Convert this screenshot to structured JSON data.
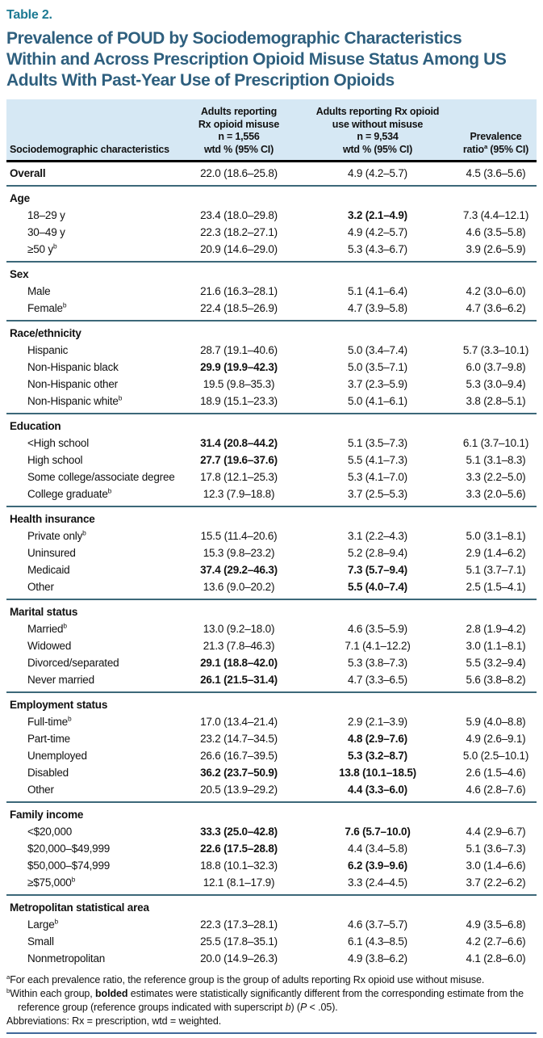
{
  "colors": {
    "accent_teal": "#1c7a93",
    "title_blue": "#2e5f7e",
    "header_bg": "#d6e8f4",
    "divider": "#3c6879",
    "bottom_rule": "#40689a"
  },
  "table_label": "Table 2.",
  "title_lines": [
    "Prevalence of POUD by Sociodemographic Characteristics",
    "Within and Across Prescription Opioid Misuse Status Among US",
    "Adults With Past-Year Use of Prescription Opioids"
  ],
  "header": {
    "col1": "Sociodemographic characteristics",
    "col2_lines": [
      [
        {
          "t": "Adults reporting"
        }
      ],
      [
        {
          "t": "Rx opioid misuse"
        }
      ],
      [
        {
          "t": "n = 1,556"
        }
      ],
      [
        {
          "t": "wtd % (95% CI)"
        }
      ]
    ],
    "col3_lines": [
      [
        {
          "t": "Adults reporting Rx opioid"
        }
      ],
      [
        {
          "t": "use without misuse"
        }
      ],
      [
        {
          "t": "n = 9,534"
        }
      ],
      [
        {
          "t": "wtd % (95% CI)"
        }
      ]
    ],
    "col4_lines": [
      [
        {
          "t": "Prevalence"
        }
      ],
      [
        {
          "t": "ratio"
        },
        {
          "t": "a",
          "style": "sup"
        },
        {
          "t": " (95% CI)"
        }
      ]
    ]
  },
  "rows": [
    {
      "type": "data",
      "flush": true,
      "label_bold": true,
      "label": "Overall",
      "cells": [
        {
          "t": "22.0 (18.6–25.8)"
        },
        {
          "t": "4.9 (4.2–5.7)"
        },
        {
          "t": "4.5 (3.6–5.6)"
        }
      ]
    },
    {
      "type": "divider"
    },
    {
      "type": "section",
      "label": "Age"
    },
    {
      "type": "data",
      "label": "18–29 y",
      "cells": [
        {
          "t": "23.4 (18.0–29.8)"
        },
        {
          "t": "3.2 (2.1–4.9)",
          "bold": true
        },
        {
          "t": "7.3 (4.4–12.1)"
        }
      ]
    },
    {
      "type": "data",
      "label": "30–49 y",
      "cells": [
        {
          "t": "22.3 (18.2–27.1)"
        },
        {
          "t": "4.9 (4.2–5.7)"
        },
        {
          "t": "4.6 (3.5–5.8)"
        }
      ]
    },
    {
      "type": "data",
      "label": "≥50 y",
      "sup": "b",
      "cells": [
        {
          "t": "20.9 (14.6–29.0)"
        },
        {
          "t": "5.3 (4.3–6.7)"
        },
        {
          "t": "3.9 (2.6–5.9)"
        }
      ]
    },
    {
      "type": "divider"
    },
    {
      "type": "section",
      "label": "Sex"
    },
    {
      "type": "data",
      "label": "Male",
      "cells": [
        {
          "t": "21.6 (16.3–28.1)"
        },
        {
          "t": "5.1 (4.1–6.4)"
        },
        {
          "t": "4.2 (3.0–6.0)"
        }
      ]
    },
    {
      "type": "data",
      "label": "Female",
      "sup": "b",
      "cells": [
        {
          "t": "22.4 (18.5–26.9)"
        },
        {
          "t": "4.7 (3.9–5.8)"
        },
        {
          "t": "4.7 (3.6–6.2)"
        }
      ]
    },
    {
      "type": "divider"
    },
    {
      "type": "section",
      "label": "Race/ethnicity"
    },
    {
      "type": "data",
      "label": "Hispanic",
      "cells": [
        {
          "t": "28.7 (19.1–40.6)"
        },
        {
          "t": "5.0 (3.4–7.4)"
        },
        {
          "t": "5.7 (3.3–10.1)"
        }
      ]
    },
    {
      "type": "data",
      "label": "Non-Hispanic black",
      "cells": [
        {
          "t": "29.9 (19.9–42.3)",
          "bold": true
        },
        {
          "t": "5.0 (3.5–7.1)"
        },
        {
          "t": "6.0 (3.7–9.8)"
        }
      ]
    },
    {
      "type": "data",
      "label": "Non-Hispanic other",
      "cells": [
        {
          "t": "19.5 (9.8–35.3)"
        },
        {
          "t": "3.7 (2.3–5.9)"
        },
        {
          "t": "5.3 (3.0–9.4)"
        }
      ]
    },
    {
      "type": "data",
      "label": "Non-Hispanic white",
      "sup": "b",
      "cells": [
        {
          "t": "18.9 (15.1–23.3)"
        },
        {
          "t": "5.0 (4.1–6.1)"
        },
        {
          "t": "3.8 (2.8–5.1)"
        }
      ]
    },
    {
      "type": "divider"
    },
    {
      "type": "section",
      "label": "Education"
    },
    {
      "type": "data",
      "label": "<High school",
      "cells": [
        {
          "t": "31.4 (20.8–44.2)",
          "bold": true
        },
        {
          "t": "5.1 (3.5–7.3)"
        },
        {
          "t": "6.1 (3.7–10.1)"
        }
      ]
    },
    {
      "type": "data",
      "label": "High school",
      "cells": [
        {
          "t": "27.7 (19.6–37.6)",
          "bold": true
        },
        {
          "t": "5.5 (4.1–7.3)"
        },
        {
          "t": "5.1 (3.1–8.3)"
        }
      ]
    },
    {
      "type": "data",
      "label": "Some college/associate degree",
      "cells": [
        {
          "t": "17.8 (12.1–25.3)"
        },
        {
          "t": "5.3 (4.1–7.0)"
        },
        {
          "t": "3.3 (2.2–5.0)"
        }
      ]
    },
    {
      "type": "data",
      "label": "College graduate",
      "sup": "b",
      "cells": [
        {
          "t": "12.3 (7.9–18.8)"
        },
        {
          "t": "3.7 (2.5–5.3)"
        },
        {
          "t": "3.3 (2.0–5.6)"
        }
      ]
    },
    {
      "type": "divider"
    },
    {
      "type": "section",
      "label": "Health insurance"
    },
    {
      "type": "data",
      "label": "Private only",
      "sup": "b",
      "cells": [
        {
          "t": "15.5 (11.4–20.6)"
        },
        {
          "t": "3.1 (2.2–4.3)"
        },
        {
          "t": "5.0 (3.1–8.1)"
        }
      ]
    },
    {
      "type": "data",
      "label": "Uninsured",
      "cells": [
        {
          "t": "15.3 (9.8–23.2)"
        },
        {
          "t": "5.2 (2.8–9.4)"
        },
        {
          "t": "2.9 (1.4–6.2)"
        }
      ]
    },
    {
      "type": "data",
      "label": "Medicaid",
      "cells": [
        {
          "t": "37.4 (29.2–46.3)",
          "bold": true
        },
        {
          "t": "7.3 (5.7–9.4)",
          "bold": true
        },
        {
          "t": "5.1 (3.7–7.1)"
        }
      ]
    },
    {
      "type": "data",
      "label": "Other",
      "cells": [
        {
          "t": "13.6 (9.0–20.2)"
        },
        {
          "t": "5.5 (4.0–7.4)",
          "bold": true
        },
        {
          "t": "2.5 (1.5–4.1)"
        }
      ]
    },
    {
      "type": "divider"
    },
    {
      "type": "section",
      "label": "Marital status"
    },
    {
      "type": "data",
      "label": "Married",
      "sup": "b",
      "cells": [
        {
          "t": "13.0 (9.2–18.0)"
        },
        {
          "t": "4.6 (3.5–5.9)"
        },
        {
          "t": "2.8 (1.9–4.2)"
        }
      ]
    },
    {
      "type": "data",
      "label": "Widowed",
      "cells": [
        {
          "t": "21.3 (7.8–46.3)"
        },
        {
          "t": "7.1 (4.1–12.2)"
        },
        {
          "t": "3.0 (1.1–8.1)"
        }
      ]
    },
    {
      "type": "data",
      "label": "Divorced/separated",
      "cells": [
        {
          "t": "29.1 (18.8–42.0)",
          "bold": true
        },
        {
          "t": "5.3 (3.8–7.3)"
        },
        {
          "t": "5.5 (3.2–9.4)"
        }
      ]
    },
    {
      "type": "data",
      "label": "Never married",
      "cells": [
        {
          "t": "26.1 (21.5–31.4)",
          "bold": true
        },
        {
          "t": "4.7 (3.3–6.5)"
        },
        {
          "t": "5.6 (3.8–8.2)"
        }
      ]
    },
    {
      "type": "divider"
    },
    {
      "type": "section",
      "label": "Employment status"
    },
    {
      "type": "data",
      "label": "Full-time",
      "sup": "b",
      "cells": [
        {
          "t": "17.0 (13.4–21.4)"
        },
        {
          "t": "2.9 (2.1–3.9)"
        },
        {
          "t": "5.9 (4.0–8.8)"
        }
      ]
    },
    {
      "type": "data",
      "label": "Part-time",
      "cells": [
        {
          "t": "23.2 (14.7–34.5)"
        },
        {
          "t": "4.8 (2.9–7.6)",
          "bold": true
        },
        {
          "t": "4.9 (2.6–9.1)"
        }
      ]
    },
    {
      "type": "data",
      "label": "Unemployed",
      "cells": [
        {
          "t": "26.6 (16.7–39.5)"
        },
        {
          "t": "5.3 (3.2–8.7)",
          "bold": true
        },
        {
          "t": "5.0 (2.5–10.1)"
        }
      ]
    },
    {
      "type": "data",
      "label": "Disabled",
      "cells": [
        {
          "t": "36.2 (23.7–50.9)",
          "bold": true
        },
        {
          "t": "13.8 (10.1–18.5)",
          "bold": true
        },
        {
          "t": "2.6 (1.5–4.6)"
        }
      ]
    },
    {
      "type": "data",
      "label": "Other",
      "cells": [
        {
          "t": "20.5 (13.9–29.2)"
        },
        {
          "t": "4.4 (3.3–6.0)",
          "bold": true
        },
        {
          "t": "4.6 (2.8–7.6)"
        }
      ]
    },
    {
      "type": "divider"
    },
    {
      "type": "section",
      "label": "Family income"
    },
    {
      "type": "data",
      "label": "<$20,000",
      "cells": [
        {
          "t": "33.3 (25.0–42.8)",
          "bold": true
        },
        {
          "t": "7.6 (5.7–10.0)",
          "bold": true
        },
        {
          "t": "4.4 (2.9–6.7)"
        }
      ]
    },
    {
      "type": "data",
      "label": "$20,000–$49,999",
      "cells": [
        {
          "t": "22.6 (17.5–28.8)",
          "bold": true
        },
        {
          "t": "4.4 (3.4–5.8)"
        },
        {
          "t": "5.1 (3.6–7.3)"
        }
      ]
    },
    {
      "type": "data",
      "label": "$50,000–$74,999",
      "cells": [
        {
          "t": "18.8 (10.1–32.3)"
        },
        {
          "t": "6.2 (3.9–9.6)",
          "bold": true
        },
        {
          "t": "3.0 (1.4–6.6)"
        }
      ]
    },
    {
      "type": "data",
      "label": "≥$75,000",
      "sup": "b",
      "cells": [
        {
          "t": "12.1 (8.1–17.9)"
        },
        {
          "t": "3.3 (2.4–4.5)"
        },
        {
          "t": "3.7 (2.2–6.2)"
        }
      ]
    },
    {
      "type": "divider"
    },
    {
      "type": "section",
      "label": "Metropolitan statistical area"
    },
    {
      "type": "data",
      "label": "Large",
      "sup": "b",
      "cells": [
        {
          "t": "22.3 (17.3–28.1)"
        },
        {
          "t": "4.6 (3.7–5.7)"
        },
        {
          "t": "4.9 (3.5–6.8)"
        }
      ]
    },
    {
      "type": "data",
      "label": "Small",
      "cells": [
        {
          "t": "25.5 (17.8–35.1)"
        },
        {
          "t": "6.1 (4.3–8.5)"
        },
        {
          "t": "4.2 (2.7–6.6)"
        }
      ]
    },
    {
      "type": "data",
      "label": "Nonmetropolitan",
      "cells": [
        {
          "t": "20.0 (14.9–26.3)"
        },
        {
          "t": "4.9 (3.8–6.2)"
        },
        {
          "t": "4.1 (2.8–6.0)"
        }
      ]
    }
  ],
  "footnotes": [
    {
      "segments": [
        {
          "t": "a",
          "style": "sup"
        },
        {
          "t": "For each prevalence ratio, the reference group is the group of adults reporting Rx opioid use without misuse."
        }
      ]
    },
    {
      "segments": [
        {
          "t": "b",
          "style": "sup"
        },
        {
          "t": "Within each group, "
        },
        {
          "t": "bolded",
          "style": "bold"
        },
        {
          "t": " estimates were statistically significantly different from the corresponding estimate from the reference group (reference groups indicated with superscript "
        },
        {
          "t": "b",
          "style": "italic"
        },
        {
          "t": ") ("
        },
        {
          "t": "P",
          "style": "italic"
        },
        {
          "t": " < .05)."
        }
      ]
    },
    {
      "segments": [
        {
          "t": "Abbreviations: Rx = prescription, wtd = weighted."
        }
      ]
    }
  ]
}
